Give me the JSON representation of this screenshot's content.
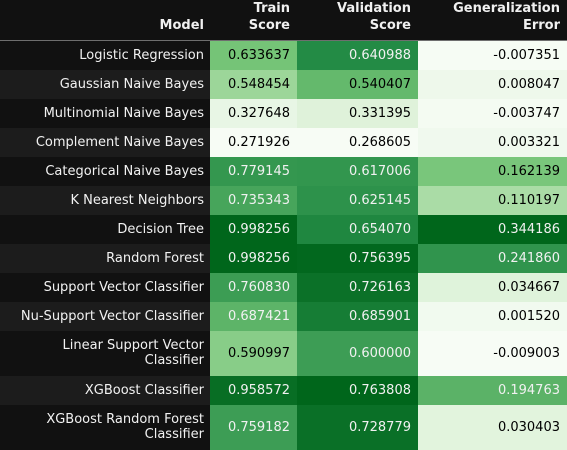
{
  "table": {
    "headers": {
      "model": "Model",
      "train_line1": "Train",
      "train_line2": "Score",
      "validation_line1": "Validation",
      "validation_line2": "Score",
      "generalization_line1": "Generalization",
      "generalization_line2": "Error"
    },
    "rows": [
      {
        "model": "Logistic Regression",
        "train": "0.633637",
        "validation": "0.640988",
        "error": "-0.007351"
      },
      {
        "model": "Gaussian Naive Bayes",
        "train": "0.548454",
        "validation": "0.540407",
        "error": "0.008047"
      },
      {
        "model": "Multinomial Naive Bayes",
        "train": "0.327648",
        "validation": "0.331395",
        "error": "-0.003747"
      },
      {
        "model": "Complement Naive Bayes",
        "train": "0.271926",
        "validation": "0.268605",
        "error": "0.003321"
      },
      {
        "model": "Categorical Naive Bayes",
        "train": "0.779145",
        "validation": "0.617006",
        "error": "0.162139"
      },
      {
        "model": "K Nearest Neighbors",
        "train": "0.735343",
        "validation": "0.625145",
        "error": "0.110197"
      },
      {
        "model": "Decision Tree",
        "train": "0.998256",
        "validation": "0.654070",
        "error": "0.344186"
      },
      {
        "model": "Random Forest",
        "train": "0.998256",
        "validation": "0.756395",
        "error": "0.241860"
      },
      {
        "model": "Support Vector Classifier",
        "train": "0.760830",
        "validation": "0.726163",
        "error": "0.034667"
      },
      {
        "model": "Nu-Support Vector Classifier",
        "train": "0.687421",
        "validation": "0.685901",
        "error": "0.001520"
      },
      {
        "model": "Linear Support Vector Classifier",
        "train": "0.590997",
        "validation": "0.600000",
        "error": "-0.009003"
      },
      {
        "model": "XGBoost Classifier",
        "train": "0.958572",
        "validation": "0.763808",
        "error": "0.194763"
      },
      {
        "model": "XGBoost Random Forest Classifier",
        "train": "0.759182",
        "validation": "0.728779",
        "error": "0.030403"
      }
    ],
    "colors": {
      "page_background": "#111111",
      "row_stripe": "#1c1c1c",
      "gradient_low": "#f7fcf5",
      "gradient_mid": "#74c476",
      "gradient_high": "#00661b"
    }
  }
}
